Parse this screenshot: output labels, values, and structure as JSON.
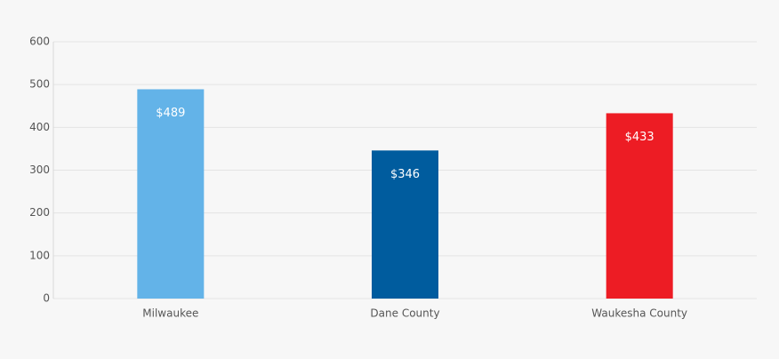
{
  "chart_data": {
    "type": "bar",
    "categories": [
      "Milwaukee",
      "Dane County",
      "Waukesha County"
    ],
    "values": [
      489,
      346,
      433
    ],
    "value_labels": [
      "$489",
      "$346",
      "$433"
    ],
    "colors": [
      "#63b3e8",
      "#005c9e",
      "#ed1c24"
    ],
    "ylim": [
      0,
      600
    ],
    "yticks": [
      0,
      100,
      200,
      300,
      400,
      500,
      600
    ],
    "grid": true
  }
}
